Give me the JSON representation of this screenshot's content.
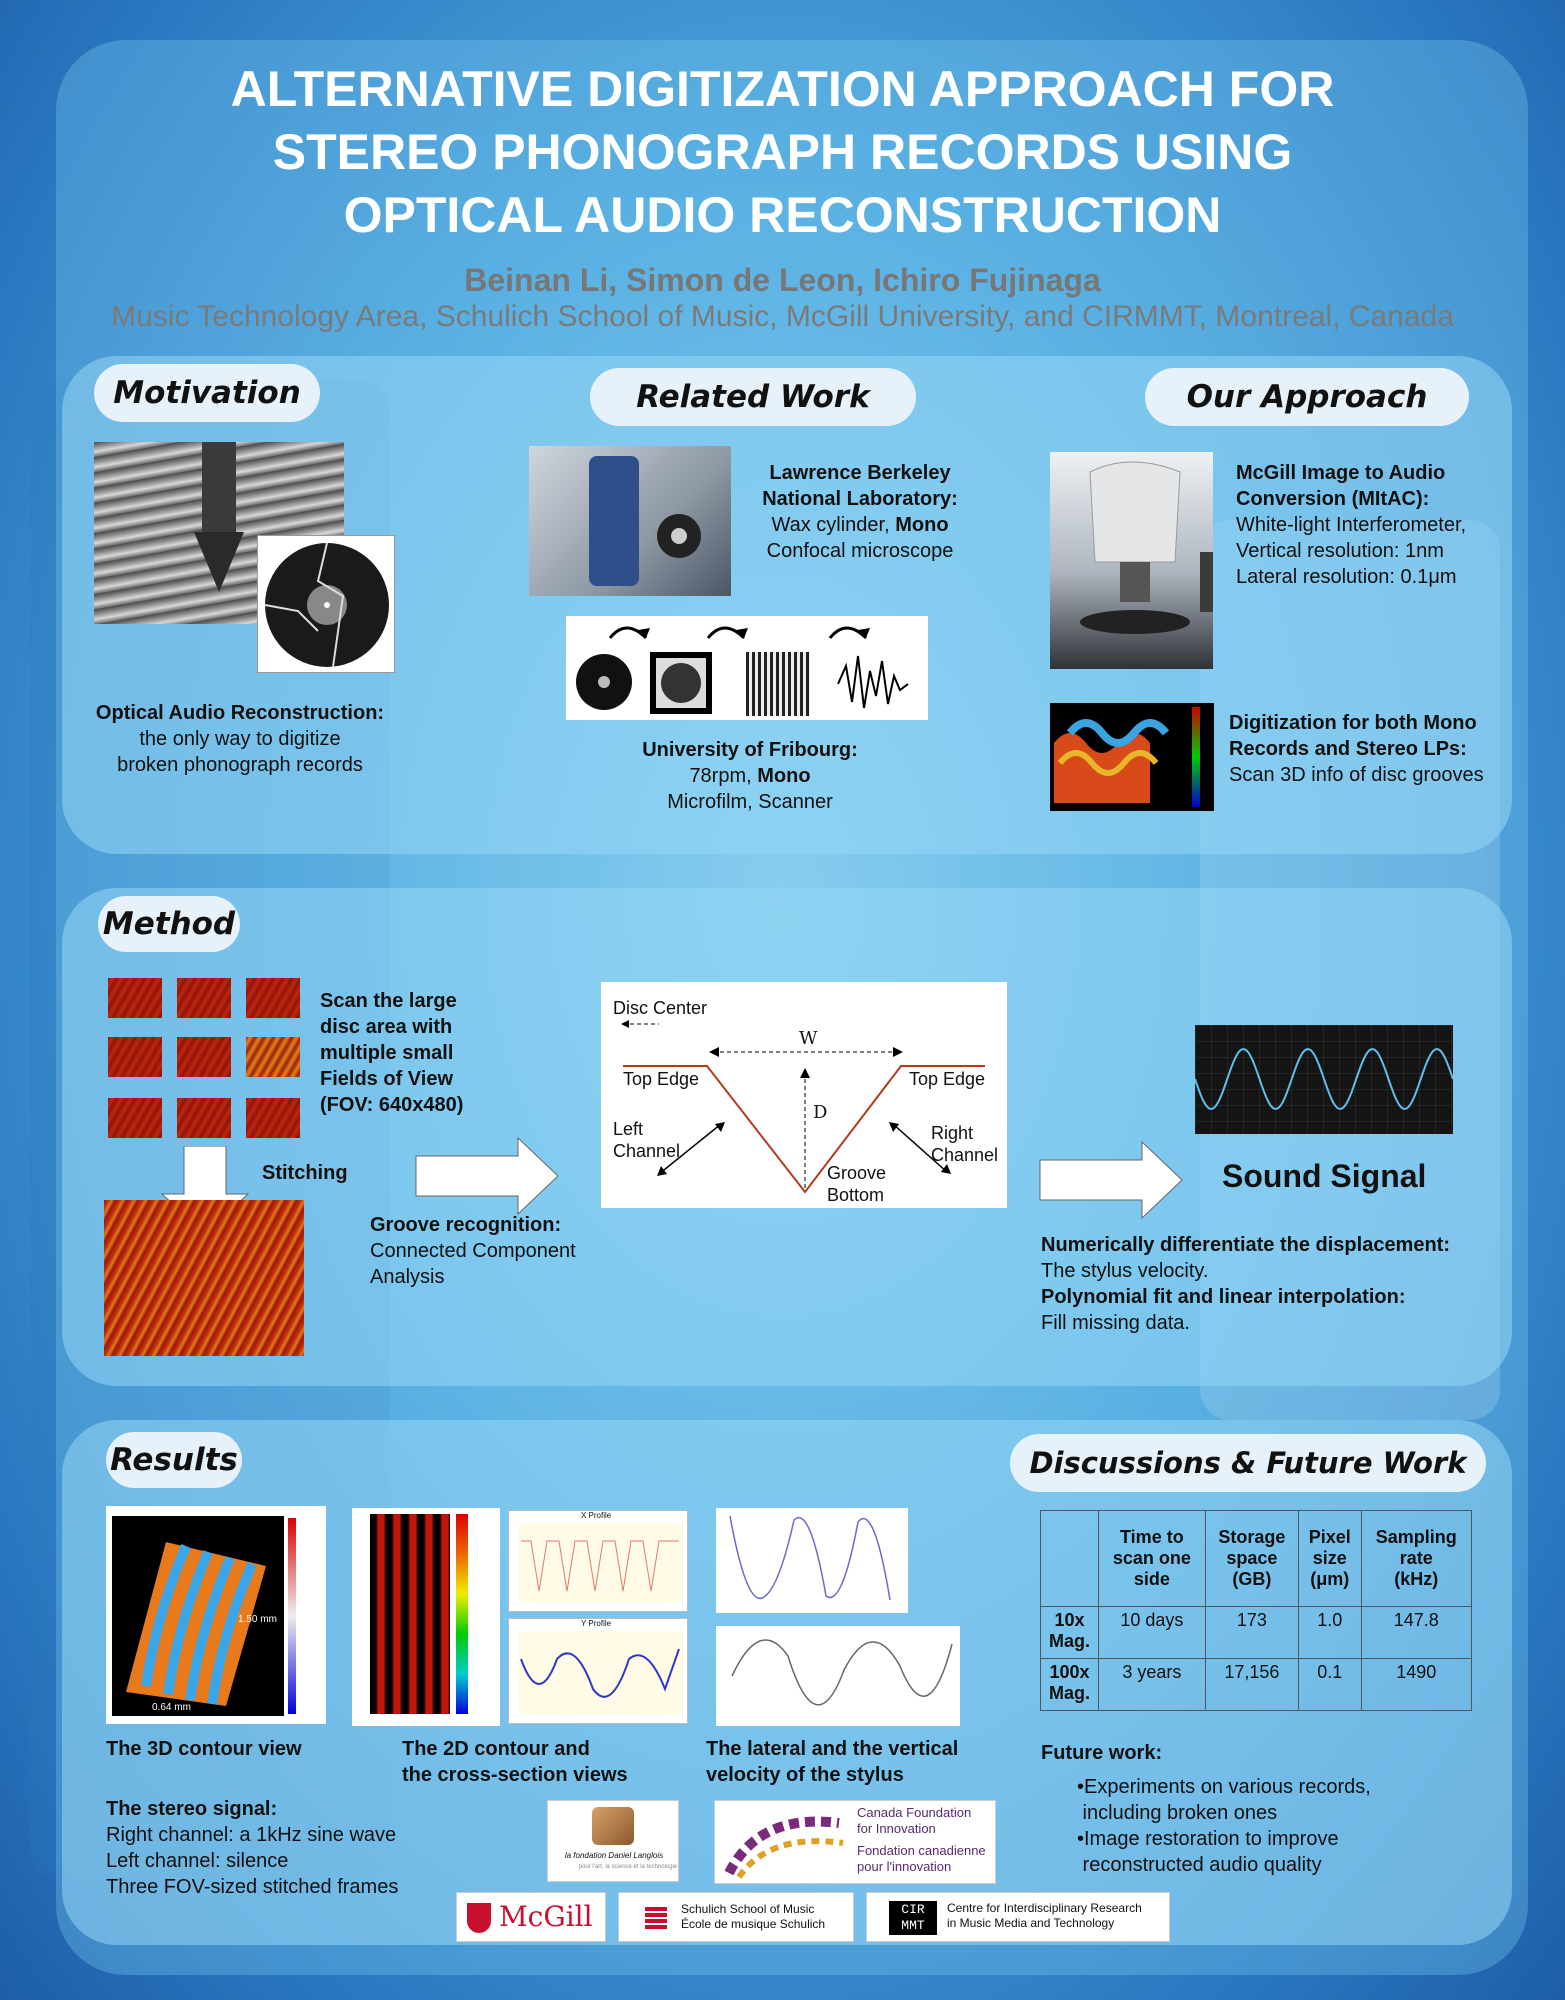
{
  "title_lines": [
    "ALTERNATIVE DIGITIZATION APPROACH FOR",
    "STEREO PHONOGRAPH RECORDS USING",
    "OPTICAL AUDIO RECONSTRUCTION"
  ],
  "authors": "Beinan Li, Simon de Leon, Ichiro Fujinaga",
  "affiliation": "Music Technology Area, Schulich School of Music, McGill University, and CIRMMT, Montreal, Canada",
  "motivation": {
    "heading": "Motivation",
    "caption_bold": "Optical Audio Reconstruction:",
    "caption_lines": [
      "the only way to digitize",
      "broken phonograph records"
    ]
  },
  "related": {
    "heading": "Related Work",
    "lbnl_bold_1": "Lawrence Berkeley",
    "lbnl_bold_2": "National Laboratory:",
    "lbnl_line_3a": "Wax cylinder, ",
    "lbnl_line_3b": "Mono",
    "lbnl_line_4": "Confocal microscope",
    "fribourg_bold": "University of Fribourg:",
    "fribourg_line_2a": "78rpm, ",
    "fribourg_line_2b": "Mono",
    "fribourg_line_3": "Microfilm, Scanner"
  },
  "approach": {
    "heading": "Our Approach",
    "mitac_bold_1": "McGill Image to Audio",
    "mitac_bold_2": "Conversion (MItAC):",
    "mitac_lines": [
      "White-light Interferometer,",
      "Vertical resolution: 1nm",
      "Lateral  resolution: 0.1μm"
    ],
    "digit_bold_1": "Digitization for both Mono",
    "digit_bold_2": "Records and Stereo LPs:",
    "digit_line": "Scan 3D info of disc grooves"
  },
  "method": {
    "heading": "Method",
    "scan_lines": [
      "Scan the large",
      "disc area with",
      "multiple small",
      "Fields of View",
      "(FOV: 640x480)"
    ],
    "stitching": "Stitching",
    "groove_bold": "Groove recognition:",
    "groove_lines": [
      "Connected Component",
      "Analysis"
    ],
    "diagram": {
      "disc_center": "Disc Center",
      "w": "W",
      "d": "D",
      "top_edge_left": "Top Edge",
      "top_edge_right": "Top Edge",
      "left_channel": [
        "Left",
        "Channel"
      ],
      "right_channel": [
        "Right",
        "Channel"
      ],
      "groove_bottom": [
        "Groove",
        "Bottom"
      ]
    },
    "sound_signal": "Sound Signal",
    "diff_bold": "Numerically differentiate the displacement:",
    "diff_line": "The stylus velocity.",
    "poly_bold": "Polynomial fit and linear interpolation:",
    "poly_line": "Fill missing data."
  },
  "results": {
    "heading": "Results",
    "cap_3d": "The 3D contour view",
    "cap_2d": [
      "The 2D contour and",
      "the cross-section views"
    ],
    "cap_vel": [
      "The lateral and the vertical",
      "velocity of the stylus"
    ],
    "stereo_bold": "The stereo signal:",
    "stereo_lines": [
      "Right channel: a 1kHz sine wave",
      "Left channel: silence",
      "Three FOV-sized stitched frames"
    ],
    "img_3d_labels": [
      "1.50 mm",
      "0.64 mm"
    ],
    "x_profile": "X Profile",
    "y_profile": "Y Profile"
  },
  "discussion": {
    "heading": "Discussions & Future Work",
    "table_headers": [
      [
        "Time to",
        "scan one",
        "side"
      ],
      [
        "Storage",
        "space",
        "(GB)"
      ],
      [
        "Pixel",
        "size",
        "(μm)"
      ],
      [
        "Sampling",
        "rate",
        "(kHz)"
      ]
    ],
    "table_rows": [
      {
        "label": [
          "10x",
          "Mag."
        ],
        "cells": [
          "10 days",
          "173",
          "1.0",
          "147.8"
        ]
      },
      {
        "label": [
          "100x",
          "Mag."
        ],
        "cells": [
          "3 years",
          "17,156",
          "0.1",
          "1490"
        ]
      }
    ],
    "future_bold": "Future work:",
    "future_items": [
      [
        "•Experiments on various records,",
        " including broken ones"
      ],
      [
        "•Image restoration to improve",
        " reconstructed audio quality"
      ]
    ]
  },
  "logos": {
    "langlois": "la fondation Daniel Langlois",
    "langlois_sub": "pour l'art, la science et la technologie",
    "cfi_lines": [
      "Canada Foundation",
      "for Innovation",
      "Fondation canadienne",
      "pour l'innovation"
    ],
    "mcgill": "McGill",
    "schulich_lines": [
      "Schulich School of Music",
      "École de musique Schulich"
    ],
    "cirmmt_mark": [
      "CIR",
      "MMT"
    ],
    "cirmmt_lines": [
      "Centre for Interdisciplinary Research",
      "in Music Media and Technology"
    ]
  },
  "colors": {
    "panel": "#9dd7f3",
    "pill": "#e6f1fa",
    "title": "#ffffff",
    "thermal_red": "#b5200f",
    "thermal_orange": "#e26018"
  }
}
